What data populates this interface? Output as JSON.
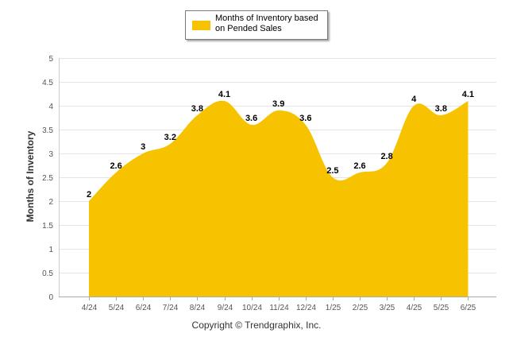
{
  "legend": {
    "label": "Months of Inventory based on Pended Sales",
    "color": "#f7c300"
  },
  "footer": {
    "copyright": "Copyright © Trendgraphix, Inc."
  },
  "chart_data": {
    "type": "area",
    "title": "",
    "xlabel": "",
    "ylabel": "Months of Inventory",
    "ylim": [
      0,
      5
    ],
    "yticks": [
      "0",
      "0.5",
      "1",
      "1.5",
      "2",
      "2.5",
      "3",
      "3.5",
      "4",
      "4.5",
      "5"
    ],
    "grid": true,
    "legend_position": "top-center",
    "categories": [
      "4/24",
      "5/24",
      "6/24",
      "7/24",
      "8/24",
      "9/24",
      "10/24",
      "11/24",
      "12/24",
      "1/25",
      "2/25",
      "3/25",
      "4/25",
      "5/25",
      "6/25"
    ],
    "series": [
      {
        "name": "Months of Inventory based on Pended Sales",
        "color": "#f7c300",
        "values": [
          2,
          2.6,
          3,
          3.2,
          3.8,
          4.1,
          3.6,
          3.9,
          3.6,
          2.5,
          2.6,
          2.8,
          4,
          3.8,
          4.1
        ],
        "labels": [
          "2",
          "2.6",
          "3",
          "3.2",
          "3.8",
          "4.1",
          "3.6",
          "3.9",
          "3.6",
          "2.5",
          "2.6",
          "2.8",
          "4",
          "3.8",
          "4.1"
        ]
      }
    ]
  }
}
